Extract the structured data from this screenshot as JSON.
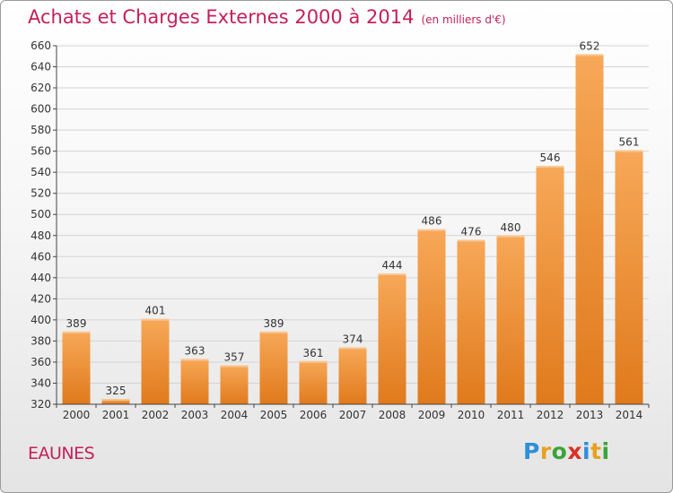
{
  "header": {
    "title": "Achats et Charges Externes 2000 à 2014",
    "subtitle": "(en milliers d'€)"
  },
  "footer": {
    "commune": "EAUNES",
    "logo": {
      "text": "Proxiti",
      "letters": [
        {
          "char": "P",
          "color": "#2e8fd8"
        },
        {
          "char": "r",
          "color": "#e8a020"
        },
        {
          "char": "o",
          "color": "#3aa33a"
        },
        {
          "char": "x",
          "color": "#d8322a"
        },
        {
          "char": "i",
          "color": "#2e8fd8"
        },
        {
          "char": "t",
          "color": "#e8a020"
        },
        {
          "char": "i",
          "color": "#3aa33a"
        }
      ]
    }
  },
  "colors": {
    "bar_light": "#f7a858",
    "bar_dark": "#e07a1c",
    "grid": "#d4d4d4",
    "axis": "#444444",
    "text": "#333333",
    "accent": "#c4205a"
  },
  "chart_data": {
    "type": "bar",
    "title": "Achats et Charges Externes 2000 à 2014",
    "subtitle": "(en milliers d'€)",
    "xlabel": "",
    "ylabel": "",
    "categories": [
      "2000",
      "2001",
      "2002",
      "2003",
      "2004",
      "2005",
      "2006",
      "2007",
      "2008",
      "2009",
      "2010",
      "2011",
      "2012",
      "2013",
      "2014"
    ],
    "values": [
      389,
      325,
      401,
      363,
      357,
      389,
      361,
      374,
      444,
      486,
      476,
      480,
      546,
      652,
      561
    ],
    "ylim": [
      320,
      660
    ],
    "yticks": [
      320,
      340,
      360,
      380,
      400,
      420,
      440,
      460,
      480,
      500,
      520,
      540,
      560,
      580,
      600,
      620,
      640,
      660
    ],
    "grid": true,
    "data_labels": true
  }
}
